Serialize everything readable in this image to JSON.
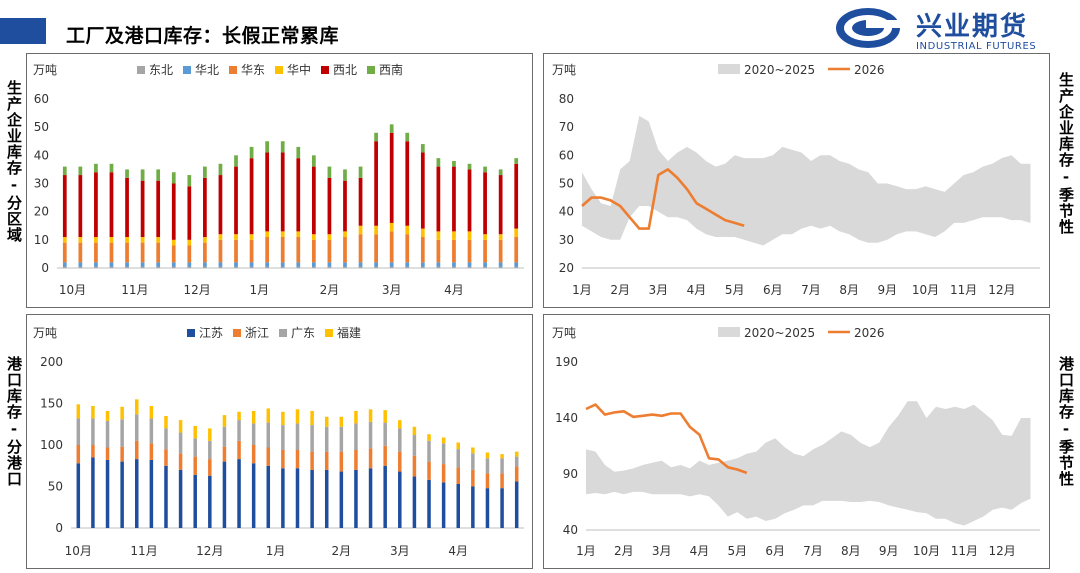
{
  "header": {
    "title": "工厂及港口库存：长假正常累库"
  },
  "logo": {
    "name_cn": "兴业期货",
    "name_en": "INDUSTRIAL FUTURES",
    "color": "#1f4e9e"
  },
  "side_labels": {
    "left_top": "生产企业库存-分区域",
    "right_top": "生产企业库存-季节性",
    "left_bottom": "港口库存-分港口",
    "right_bottom": "港口库存-季节性"
  },
  "chart_data": [
    {
      "id": "factory-region",
      "type": "stacked-bar",
      "unit": "万吨",
      "ylim": [
        0,
        60
      ],
      "yticks": [
        0,
        10,
        20,
        30,
        40,
        50,
        60
      ],
      "xlabels": [
        "10月",
        "11月",
        "12月",
        "1月",
        "2月",
        "3月",
        "4月"
      ],
      "xlabel_positions": [
        0.5,
        4.5,
        8.5,
        12.5,
        17,
        21,
        25
      ],
      "series": [
        {
          "name": "东北",
          "color": "#a5a5a5",
          "values": [
            0.4,
            0.4,
            0.4,
            0.4,
            0.4,
            0.4,
            0.4,
            0.4,
            0.4,
            0.4,
            0.4,
            0.4,
            0.4,
            0.4,
            0.4,
            0.4,
            0.4,
            0.4,
            0.4,
            0.4,
            0.4,
            0.4,
            0.4,
            0.4,
            0.4,
            0.4,
            0.4,
            0.4,
            0.4,
            0.4
          ]
        },
        {
          "name": "华北",
          "color": "#5b9bd5",
          "values": [
            1.6,
            1.6,
            1.6,
            1.6,
            1.6,
            1.6,
            1.6,
            1.6,
            1.6,
            1.6,
            1.6,
            1.6,
            1.6,
            1.6,
            1.6,
            1.6,
            1.6,
            1.6,
            1.6,
            1.6,
            1.6,
            1.6,
            1.6,
            1.6,
            1.6,
            1.6,
            1.6,
            1.6,
            1.6,
            1.6
          ]
        },
        {
          "name": "华东",
          "color": "#ed7d31",
          "values": [
            7,
            7,
            7,
            7,
            7,
            7,
            7,
            6,
            6,
            7,
            8,
            8,
            8,
            9,
            9,
            9,
            8,
            8,
            9,
            10,
            10,
            11,
            10,
            9,
            8,
            8,
            8,
            8,
            8,
            9
          ]
        },
        {
          "name": "华中",
          "color": "#ffc000",
          "values": [
            2,
            2,
            2,
            2,
            2,
            2,
            2,
            2,
            2,
            2,
            2,
            2,
            2,
            2,
            2,
            2,
            2,
            2,
            2,
            3,
            3,
            3,
            3,
            3,
            3,
            3,
            3,
            2,
            2,
            3
          ]
        },
        {
          "name": "西北",
          "color": "#c00000",
          "values": [
            22,
            22,
            23,
            23,
            21,
            20,
            20,
            20,
            19,
            21,
            21,
            24,
            27,
            28,
            28,
            26,
            24,
            20,
            18,
            17,
            30,
            32,
            30,
            27,
            23,
            23,
            22,
            22,
            21,
            23
          ]
        },
        {
          "name": "西南",
          "color": "#70ad47",
          "values": [
            3,
            3,
            3,
            3,
            3,
            4,
            4,
            4,
            4,
            4,
            4,
            4,
            4,
            4,
            4,
            4,
            4,
            4,
            4,
            4,
            3,
            3,
            3,
            3,
            3,
            2,
            2,
            2,
            2,
            2
          ]
        }
      ]
    },
    {
      "id": "factory-seasonal",
      "type": "seasonal-line-band",
      "unit": "万吨",
      "ylim": [
        20,
        80
      ],
      "yticks": [
        20,
        30,
        40,
        50,
        60,
        70,
        80
      ],
      "xlabels": [
        "1月",
        "2月",
        "3月",
        "4月",
        "5月",
        "6月",
        "7月",
        "8月",
        "9月",
        "10月",
        "11月",
        "12月"
      ],
      "legend": [
        "2020~2025",
        "2026"
      ],
      "band_color": "#d9d9d9",
      "line_color": "#ed7d31",
      "band": {
        "x": [
          0,
          0.25,
          0.5,
          0.75,
          1.0,
          1.25,
          1.5,
          1.75,
          2.0,
          2.25,
          2.5,
          2.75,
          3.0,
          3.25,
          3.5,
          3.75,
          4.0,
          4.25,
          4.5,
          4.75,
          5.0,
          5.25,
          5.5,
          5.75,
          6.0,
          6.25,
          6.5,
          6.75,
          7.0,
          7.25,
          7.5,
          7.75,
          8.0,
          8.25,
          8.5,
          8.75,
          9.0,
          9.25,
          9.5,
          9.75,
          10.0,
          10.25,
          10.5,
          10.75,
          11.0,
          11.25,
          11.5,
          11.75
        ],
        "upper": [
          54,
          48,
          43,
          42,
          55,
          58,
          74,
          72,
          62,
          58,
          61,
          63,
          61,
          58,
          56,
          57,
          60,
          59,
          59,
          59,
          60,
          63,
          62,
          61,
          58,
          60,
          60,
          58,
          57,
          55,
          54,
          50,
          50,
          49,
          48,
          48,
          49,
          48,
          47,
          50,
          53,
          54,
          56,
          57,
          59,
          60,
          57,
          57
        ],
        "lower": [
          35,
          33,
          31,
          30,
          30,
          38,
          42,
          42,
          40,
          38,
          38,
          37,
          34,
          32,
          31,
          31,
          31,
          30,
          29,
          28,
          30,
          32,
          32,
          34,
          35,
          34,
          35,
          33,
          32,
          30,
          29,
          29,
          30,
          32,
          33,
          33,
          32,
          31,
          33,
          36,
          36,
          37,
          38,
          38,
          38,
          37,
          37,
          36
        ]
      },
      "line": {
        "x": [
          0,
          0.25,
          0.5,
          0.75,
          1.0,
          1.25,
          1.5,
          1.75,
          2.0,
          2.25,
          2.5,
          2.75,
          3.0,
          3.25,
          3.5,
          3.75,
          4.0,
          4.25
        ],
        "y": [
          42,
          45,
          45,
          44,
          42,
          38,
          34,
          34,
          53,
          55,
          52,
          48,
          43,
          41,
          39,
          37,
          36,
          35
        ]
      }
    },
    {
      "id": "port-by-port",
      "type": "stacked-bar",
      "unit": "万吨",
      "ylim": [
        0,
        200
      ],
      "yticks": [
        0,
        50,
        100,
        150,
        200
      ],
      "xlabels": [
        "10月",
        "11月",
        "12月",
        "1月",
        "2月",
        "3月",
        "4月"
      ],
      "xlabel_positions": [
        0,
        4.5,
        9,
        13.5,
        18,
        22,
        26
      ],
      "series": [
        {
          "name": "江苏",
          "color": "#1f4e9e",
          "values": [
            78,
            85,
            82,
            80,
            83,
            82,
            75,
            70,
            64,
            63,
            80,
            83,
            78,
            75,
            72,
            72,
            70,
            70,
            68,
            70,
            72,
            75,
            68,
            62,
            58,
            55,
            53,
            50,
            48,
            48,
            56
          ]
        },
        {
          "name": "浙江",
          "color": "#ed7d31",
          "values": [
            22,
            15,
            15,
            18,
            22,
            20,
            20,
            20,
            22,
            20,
            18,
            22,
            22,
            22,
            22,
            22,
            22,
            22,
            24,
            24,
            24,
            24,
            24,
            25,
            22,
            22,
            20,
            20,
            18,
            18,
            18
          ]
        },
        {
          "name": "广东",
          "color": "#a5a5a5",
          "values": [
            32,
            32,
            32,
            33,
            32,
            30,
            25,
            25,
            22,
            22,
            24,
            25,
            26,
            30,
            30,
            32,
            32,
            30,
            30,
            32,
            32,
            28,
            28,
            25,
            25,
            25,
            22,
            20,
            18,
            18,
            12
          ]
        },
        {
          "name": "福建",
          "color": "#ffc000",
          "values": [
            17,
            15,
            12,
            15,
            18,
            15,
            15,
            15,
            15,
            15,
            14,
            10,
            15,
            17,
            16,
            17,
            17,
            12,
            12,
            15,
            15,
            15,
            10,
            10,
            8,
            7,
            8,
            7,
            7,
            5,
            6
          ]
        }
      ]
    },
    {
      "id": "port-seasonal",
      "type": "seasonal-line-band",
      "unit": "万吨",
      "ylim": [
        40,
        190
      ],
      "yticks": [
        40,
        90,
        140,
        190
      ],
      "xlabels": [
        "1月",
        "2月",
        "3月",
        "4月",
        "5月",
        "6月",
        "7月",
        "8月",
        "9月",
        "10月",
        "11月",
        "12月"
      ],
      "legend": [
        "2020~2025",
        "2026"
      ],
      "band_color": "#d9d9d9",
      "line_color": "#ed7d31",
      "band": {
        "x": [
          0,
          0.25,
          0.5,
          0.75,
          1.0,
          1.25,
          1.5,
          1.75,
          2.0,
          2.25,
          2.5,
          2.75,
          3.0,
          3.25,
          3.5,
          3.75,
          4.0,
          4.25,
          4.5,
          4.75,
          5.0,
          5.25,
          5.5,
          5.75,
          6.0,
          6.25,
          6.5,
          6.75,
          7.0,
          7.25,
          7.5,
          7.75,
          8.0,
          8.25,
          8.5,
          8.75,
          9.0,
          9.25,
          9.5,
          9.75,
          10.0,
          10.25,
          10.5,
          10.75,
          11.0,
          11.25,
          11.5,
          11.75
        ],
        "upper": [
          112,
          110,
          98,
          92,
          93,
          95,
          98,
          100,
          102,
          96,
          98,
          95,
          102,
          98,
          100,
          102,
          104,
          108,
          110,
          118,
          122,
          114,
          108,
          106,
          112,
          116,
          122,
          128,
          125,
          118,
          114,
          118,
          132,
          142,
          155,
          155,
          140,
          150,
          148,
          150,
          148,
          152,
          145,
          138,
          125,
          124,
          140,
          140
        ],
        "lower": [
          72,
          73,
          72,
          74,
          72,
          74,
          74,
          72,
          72,
          72,
          72,
          70,
          72,
          70,
          62,
          52,
          56,
          50,
          52,
          48,
          50,
          55,
          58,
          62,
          62,
          66,
          66,
          66,
          65,
          65,
          66,
          65,
          62,
          60,
          58,
          56,
          55,
          50,
          50,
          46,
          44,
          48,
          52,
          58,
          60,
          58,
          64,
          68
        ]
      },
      "line": {
        "x": [
          0,
          0.25,
          0.5,
          0.75,
          1.0,
          1.25,
          1.5,
          1.75,
          2.0,
          2.25,
          2.5,
          2.75,
          3.0,
          3.25,
          3.5,
          3.75,
          4.0,
          4.25
        ],
        "y": [
          148,
          152,
          143,
          145,
          146,
          141,
          142,
          143,
          142,
          144,
          144,
          132,
          125,
          104,
          103,
          96,
          94,
          91
        ]
      }
    }
  ]
}
